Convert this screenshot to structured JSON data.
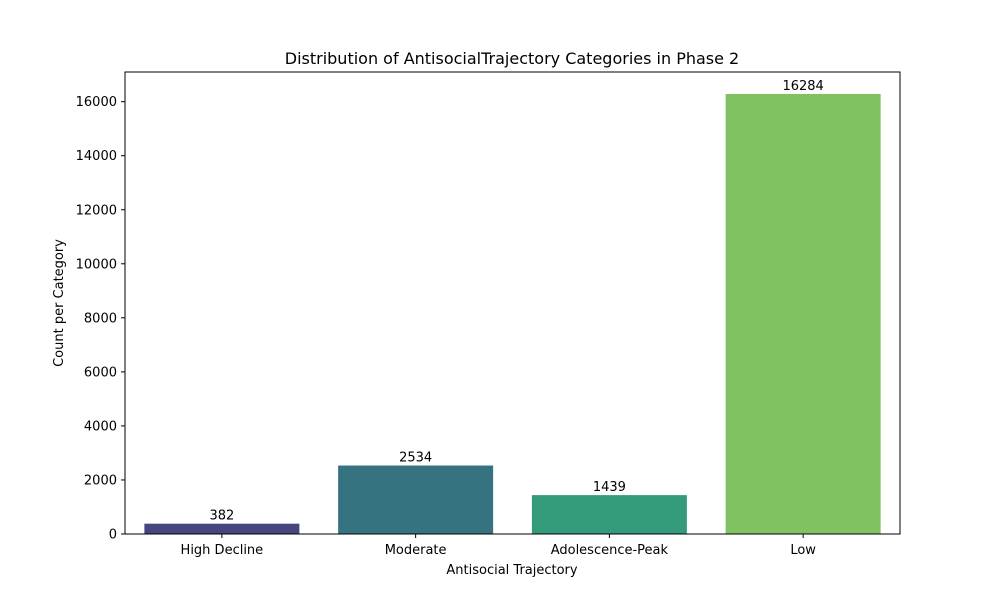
{
  "chart_data": {
    "type": "bar",
    "title": "Distribution of AntisocialTrajectory Categories in Phase 2",
    "xlabel": "Antisocial Trajectory",
    "ylabel": "Count per Category",
    "categories": [
      "High Decline",
      "Moderate",
      "Adolescence-Peak",
      "Low"
    ],
    "values": [
      382,
      2534,
      1439,
      16284
    ],
    "data_labels": [
      "382",
      "2534",
      "1439",
      "16284"
    ],
    "colors": [
      "#46467f",
      "#36727f",
      "#339a7c",
      "#80c262"
    ],
    "yticks": [
      0,
      2000,
      4000,
      6000,
      8000,
      10000,
      12000,
      14000,
      16000
    ],
    "ytick_labels": [
      "0",
      "2000",
      "4000",
      "6000",
      "8000",
      "10000",
      "12000",
      "14000",
      "16000"
    ],
    "ylim": [
      0,
      17098
    ],
    "grid": false,
    "legend": null
  }
}
